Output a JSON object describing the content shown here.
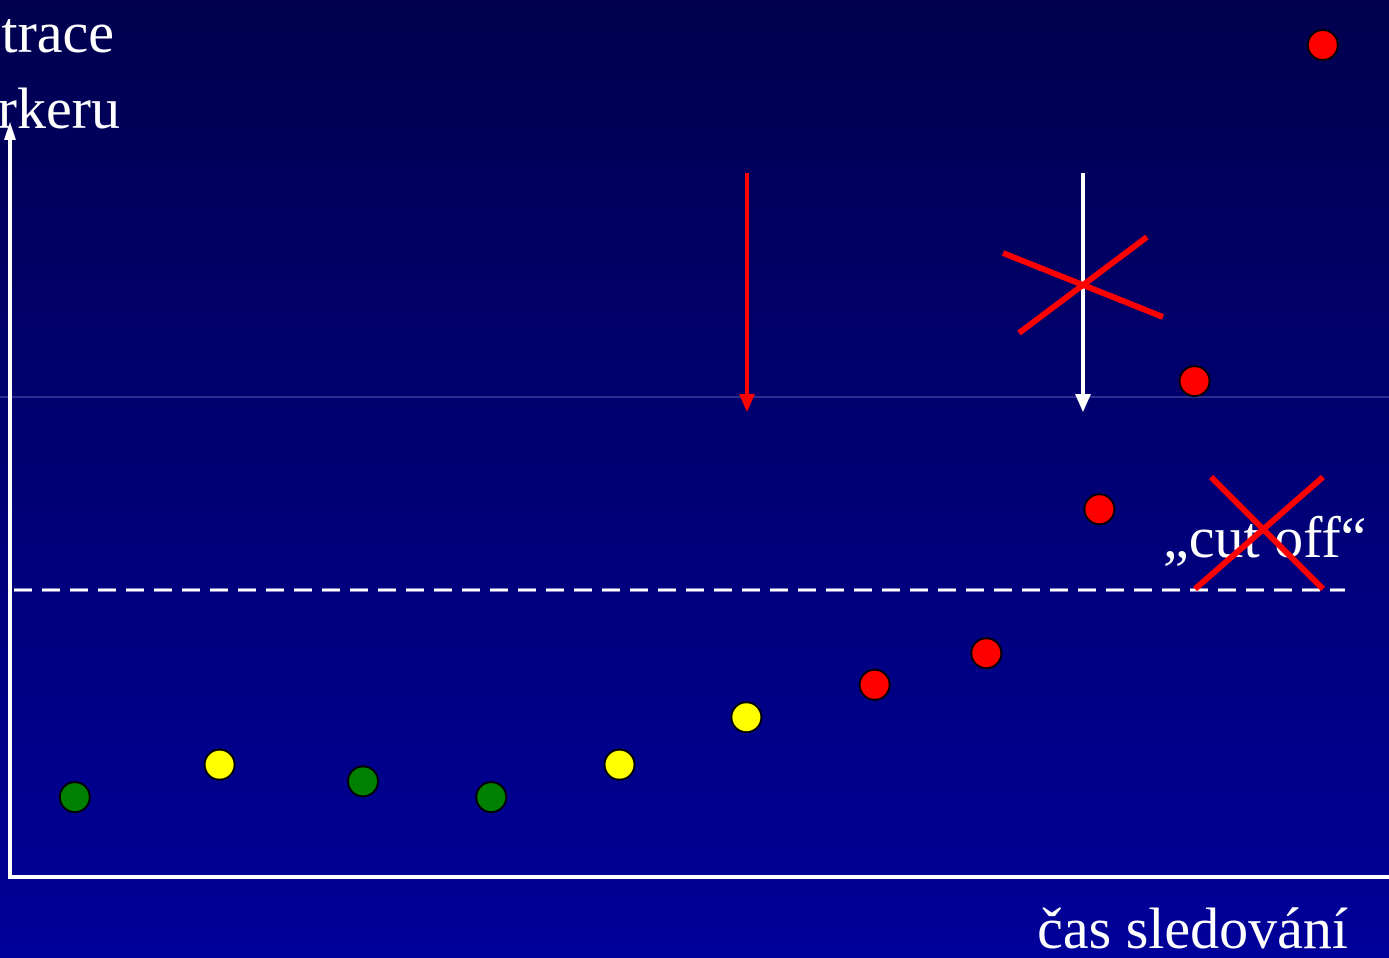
{
  "chart_data": {
    "type": "scatter",
    "y_label_lines": [
      "trace",
      "rkeru"
    ],
    "x_label": "čas sledování",
    "cutoff_label": "„cut off“",
    "x": [
      4.7,
      15.2,
      25.6,
      34.9,
      44.2,
      53.4,
      62.7,
      70.8,
      79.0,
      85.9,
      95.2
    ],
    "values": [
      9.6,
      13.5,
      11.5,
      9.6,
      13.5,
      19.2,
      23.1,
      26.9,
      44.2,
      59.6,
      100
    ],
    "colors": [
      "#008000",
      "#ffff00",
      "#008000",
      "#008000",
      "#ffff00",
      "#ffff00",
      "#ff0000",
      "#ff0000",
      "#ff0000",
      "#ff0000",
      "#ff0000"
    ],
    "cutoff": 34.5,
    "xlim": [
      0,
      100
    ],
    "ylim": [
      0,
      100
    ]
  }
}
